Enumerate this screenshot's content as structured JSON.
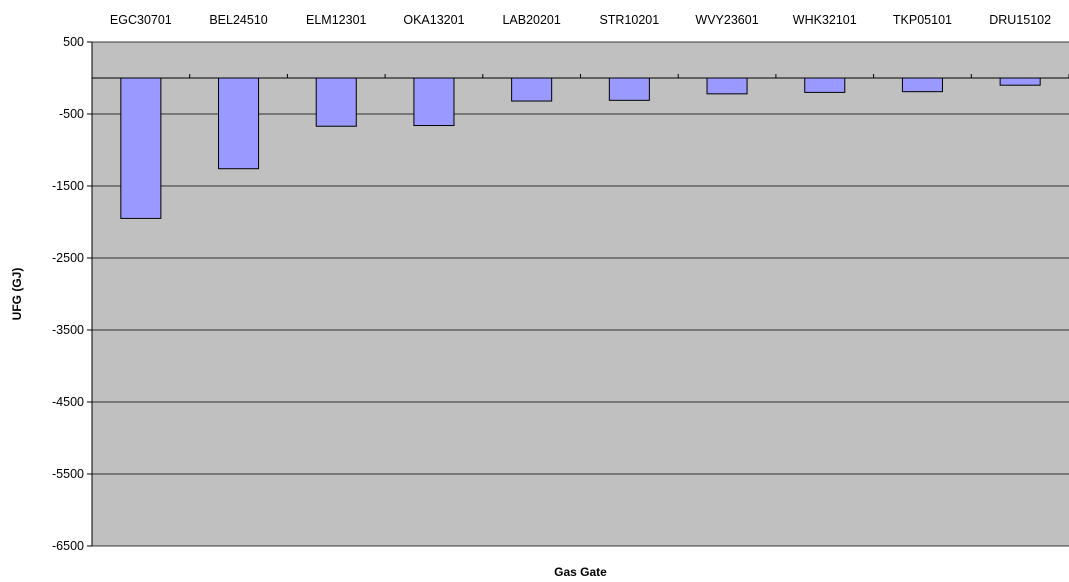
{
  "chart_data": {
    "type": "bar",
    "title": "",
    "xlabel": "Gas Gate",
    "ylabel": "UFG (GJ)",
    "categories": [
      "EGC30701",
      "BEL24510",
      "ELM12301",
      "OKA13201",
      "LAB20201",
      "STR10201",
      "WVY23601",
      "WHK32101",
      "TKP05101",
      "DRU15102"
    ],
    "series": [
      {
        "values": [
          -1950,
          -1260,
          -670,
          -660,
          -320,
          -310,
          -220,
          -200,
          -190,
          -100
        ]
      }
    ],
    "ylim": [
      -6500,
      500
    ],
    "yticks": [
      500,
      -500,
      -1500,
      -2500,
      -3500,
      -4500,
      -5500,
      -6500
    ],
    "category_labels_position": "top",
    "grid": true,
    "legend": "none",
    "colors": {
      "plot_background": "#c0c0c0",
      "bar_fill": "#9999ff",
      "bar_stroke": "#000000",
      "gridline": "#000000"
    }
  }
}
